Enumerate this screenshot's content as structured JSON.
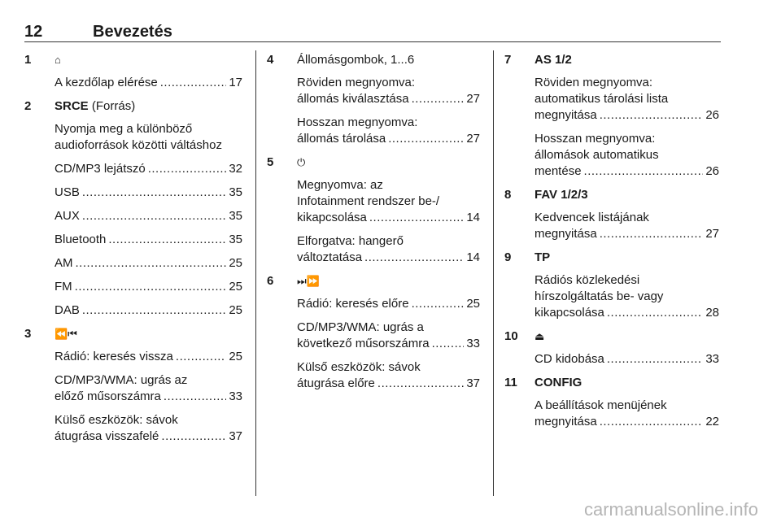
{
  "header": {
    "page_number": "12",
    "title": "Bevezetés"
  },
  "columns": [
    [
      {
        "num": "1",
        "icon": "home-icon",
        "glyph": "⌂",
        "bold": "",
        "rest": "",
        "paras": [
          {
            "lines": [],
            "last": "A kezdőlap elérése",
            "page": "17"
          }
        ]
      },
      {
        "num": "2",
        "bold": "SRCE",
        "rest": " (Forrás)",
        "paras": [
          {
            "lines": [
              "Nyomja meg a különböző",
              "audioforrások közötti váltáshoz"
            ],
            "last": null,
            "page": null
          },
          {
            "lines": [],
            "last": "CD/MP3 lejátszó",
            "page": "32"
          },
          {
            "lines": [],
            "last": "USB",
            "page": "35"
          },
          {
            "lines": [],
            "last": "AUX",
            "page": "35"
          },
          {
            "lines": [],
            "last": "Bluetooth",
            "page": "35"
          },
          {
            "lines": [],
            "last": "AM",
            "page": "25"
          },
          {
            "lines": [],
            "last": "FM",
            "page": "25"
          },
          {
            "lines": [],
            "last": "DAB",
            "page": "25"
          }
        ]
      },
      {
        "num": "3",
        "icon": "seek-back-icon",
        "glyph": "⏪⏮",
        "bold": "",
        "rest": "",
        "paras": [
          {
            "lines": [],
            "last": "Rádió: keresés vissza",
            "page": "25"
          },
          {
            "lines": [
              "CD/MP3/WMA: ugrás az"
            ],
            "last": "előző műsorszámra",
            "page": "33"
          },
          {
            "lines": [
              "Külső eszközök: sávok"
            ],
            "last": "átugrása visszafelé",
            "page": "37"
          }
        ]
      }
    ],
    [
      {
        "num": "4",
        "bold": "",
        "rest": "Állomásgombok, 1...6",
        "paras": [
          {
            "lines": [
              "Röviden megnyomva:"
            ],
            "last": "állomás kiválasztása",
            "page": "27"
          },
          {
            "lines": [
              "Hosszan megnyomva:"
            ],
            "last": "állomás tárolása",
            "page": "27"
          }
        ]
      },
      {
        "num": "5",
        "icon": "power-icon",
        "glyph": "⏻",
        "bold": "",
        "rest": "",
        "paras": [
          {
            "lines": [
              "Megnyomva: az",
              "Infotainment rendszer be-/"
            ],
            "last": "kikapcsolása",
            "page": "14"
          },
          {
            "lines": [
              "Elforgatva: hangerő"
            ],
            "last": "változtatása",
            "page": "14"
          }
        ]
      },
      {
        "num": "6",
        "icon": "seek-forward-icon",
        "glyph": "⏭⏩",
        "bold": "",
        "rest": "",
        "paras": [
          {
            "lines": [],
            "last": "Rádió: keresés előre",
            "page": "25"
          },
          {
            "lines": [
              "CD/MP3/WMA: ugrás a"
            ],
            "last": "következő műsorszámra",
            "page": "33"
          },
          {
            "lines": [
              "Külső eszközök: sávok"
            ],
            "last": "átugrása előre",
            "page": "37"
          }
        ]
      }
    ],
    [
      {
        "num": "7",
        "bold": "AS 1/2",
        "rest": "",
        "paras": [
          {
            "lines": [
              "Röviden megnyomva:",
              "automatikus tárolási lista"
            ],
            "last": "megnyitása",
            "page": "26"
          },
          {
            "lines": [
              "Hosszan megnyomva:",
              "állomások automatikus"
            ],
            "last": "mentése",
            "page": "26"
          }
        ]
      },
      {
        "num": "8",
        "bold": "FAV 1/2/3",
        "rest": "",
        "paras": [
          {
            "lines": [
              "Kedvencek listájának"
            ],
            "last": "megnyitása",
            "page": "27"
          }
        ]
      },
      {
        "num": "9",
        "bold": "TP",
        "rest": "",
        "paras": [
          {
            "lines": [
              "Rádiós közlekedési",
              "hírszolgáltatás be- vagy"
            ],
            "last": "kikapcsolása",
            "page": "28"
          }
        ]
      },
      {
        "num": "10",
        "icon": "eject-icon",
        "glyph": "⏏",
        "bold": "",
        "rest": "",
        "paras": [
          {
            "lines": [],
            "last": "CD kidobása",
            "page": "33"
          }
        ]
      },
      {
        "num": "11",
        "bold": "CONFIG",
        "rest": "",
        "paras": [
          {
            "lines": [
              "A beállítások menüjének"
            ],
            "last": "megnyitása",
            "page": "22"
          }
        ]
      }
    ]
  ],
  "watermark": "carmanualsonline.info"
}
